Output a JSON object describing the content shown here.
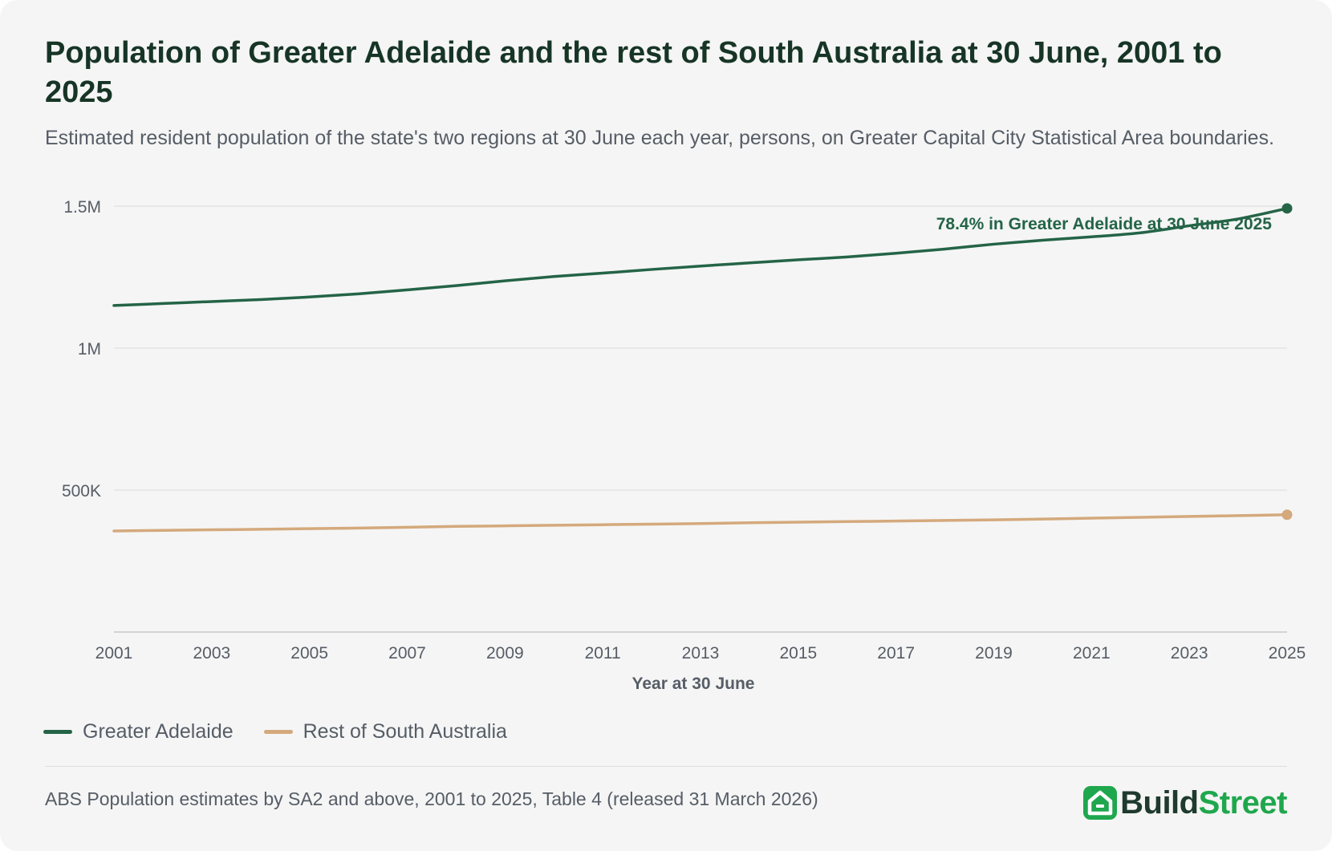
{
  "header": {
    "title": "Population of Greater Adelaide and the rest of South Australia at 30 June, 2001 to 2025",
    "subtitle": "Estimated resident population of the state's two regions at 30 June each year, persons, on Greater Capital City Statistical Area boundaries."
  },
  "footer": {
    "source": "ABS Population estimates by SA2 and above, 2001 to 2025, Table 4 (released 31 March 2026)",
    "brand_part1": "Build",
    "brand_part2": "Street",
    "brand_icon": "house-icon"
  },
  "colors": {
    "adelaide": "#246447",
    "rest": "#d4a97c",
    "grid": "#e3e3e3",
    "axis": "#c9c9c9",
    "text_muted": "#565d66",
    "brand_dark": "#1f3a2e",
    "brand_green": "#1fa74d"
  },
  "chart_data": {
    "type": "line",
    "title": "Population of Greater Adelaide and the rest of South Australia at 30 June, 2001 to 2025",
    "xlabel": "Year at 30 June",
    "ylabel": "",
    "x": [
      2001,
      2002,
      2003,
      2004,
      2005,
      2006,
      2007,
      2008,
      2009,
      2010,
      2011,
      2012,
      2013,
      2014,
      2015,
      2016,
      2017,
      2018,
      2019,
      2020,
      2021,
      2022,
      2023,
      2024,
      2025
    ],
    "xlim": [
      2001,
      2025
    ],
    "ylim": [
      0,
      1500000
    ],
    "x_ticks": [
      "2001",
      "2003",
      "2005",
      "2007",
      "2009",
      "2011",
      "2013",
      "2015",
      "2017",
      "2019",
      "2021",
      "2023",
      "2025"
    ],
    "y_ticks": [
      {
        "value": 500000,
        "label": "500K"
      },
      {
        "value": 1000000,
        "label": "1M"
      },
      {
        "value": 1500000,
        "label": "1.5M"
      }
    ],
    "grid": true,
    "legend_position": "bottom-left",
    "series": [
      {
        "name": "Greater Adelaide",
        "values": [
          1150000,
          1157000,
          1164000,
          1171000,
          1180000,
          1191000,
          1205000,
          1220000,
          1237000,
          1252000,
          1264000,
          1277000,
          1289000,
          1300000,
          1311000,
          1321000,
          1334000,
          1349000,
          1366000,
          1380000,
          1392000,
          1406000,
          1431000,
          1455000,
          1492000
        ]
      },
      {
        "name": "Rest of South Australia",
        "values": [
          356000,
          358000,
          360000,
          362000,
          364000,
          366000,
          369000,
          372000,
          374000,
          376000,
          378000,
          380000,
          382000,
          385000,
          387000,
          389000,
          391000,
          393000,
          395000,
          398000,
          401000,
          404000,
          407000,
          410000,
          413000
        ]
      }
    ],
    "annotation": "78.4% in Greater Adelaide at 30 June 2025"
  }
}
